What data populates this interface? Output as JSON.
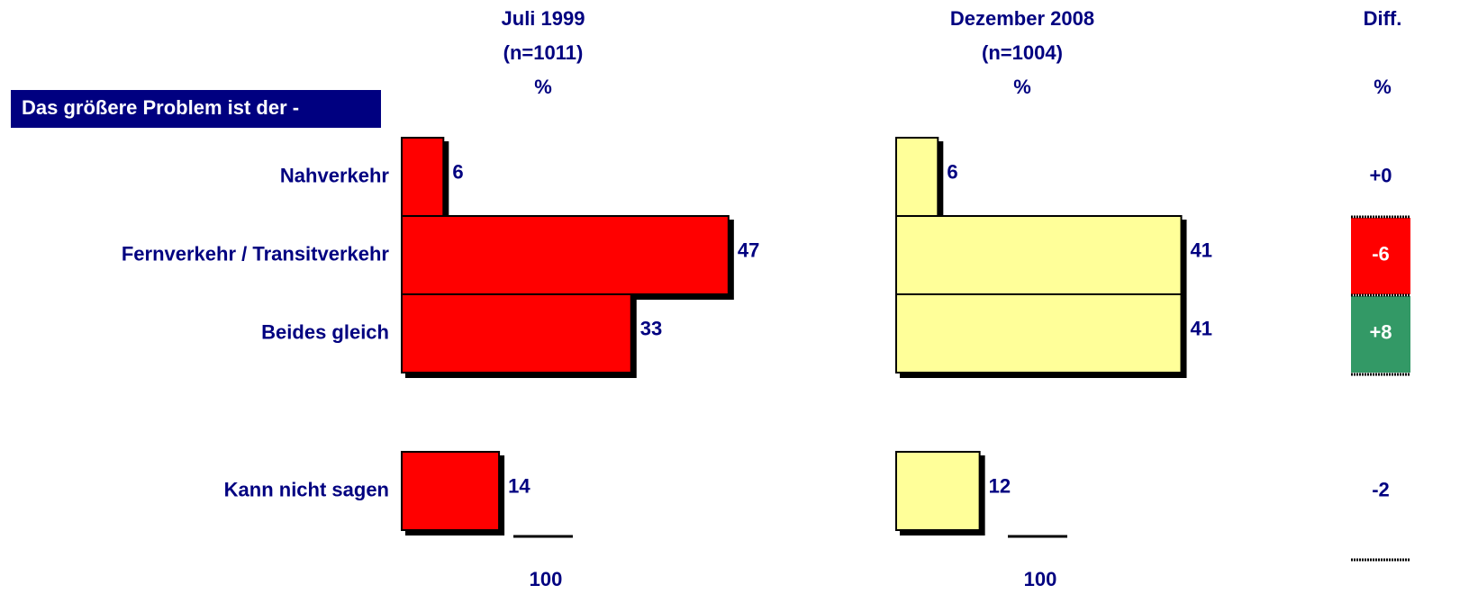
{
  "question": "Das größere Problem ist der -",
  "chart_data": [
    {
      "type": "bar",
      "orientation": "horizontal",
      "title": "Juli 1999",
      "subtitle": "(n=1011)",
      "unit": "%",
      "categories": [
        "Nahverkehr",
        "Fernverkehr / Transitverkehr",
        "Beides gleich",
        "Kann nicht sagen"
      ],
      "values": [
        6,
        47,
        33,
        14
      ],
      "color": "#ff0000",
      "total": 100
    },
    {
      "type": "bar",
      "orientation": "horizontal",
      "title": "Dezember 2008",
      "subtitle": "(n=1004)",
      "unit": "%",
      "values": [
        6,
        41,
        41,
        12
      ],
      "color": "#ffff99",
      "total": 100
    }
  ],
  "diff": {
    "title": "Diff.",
    "unit": "%",
    "values": [
      0,
      -6,
      8,
      -2
    ],
    "value_labels": [
      "+0",
      "-6",
      "+8",
      "-2"
    ],
    "colors": [
      null,
      "#ff0000",
      "#339966",
      null
    ]
  }
}
